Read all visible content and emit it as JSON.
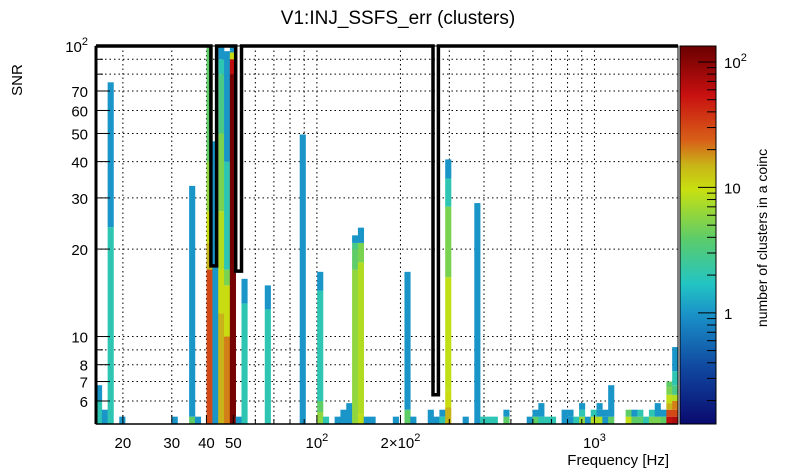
{
  "chart_data": {
    "type": "heatmap",
    "title": "V1:INJ_SSFS_err (clusters)",
    "xlabel": "Frequency [Hz]",
    "ylabel": "SNR",
    "zlabel": "number of clusters in a coinc",
    "xscale": "log",
    "yscale": "log",
    "zscale": "log",
    "xlim": [
      16,
      2000
    ],
    "ylim": [
      5,
      100
    ],
    "zlim": [
      0.13,
      134
    ],
    "nbins_x": 100,
    "grid": true,
    "x_ticks": [
      {
        "v": 20,
        "label": "20"
      },
      {
        "v": 30,
        "label": "30"
      },
      {
        "v": 40,
        "label": "40"
      },
      {
        "v": 50,
        "label": "50"
      },
      {
        "v": 100,
        "label": "10",
        "sup": "2"
      },
      {
        "v": 200,
        "label": "2×10",
        "sup": "2"
      },
      {
        "v": 1000,
        "label": "10",
        "sup": "3"
      }
    ],
    "x_grid": [
      20,
      30,
      40,
      50,
      60,
      70,
      80,
      90,
      100,
      200,
      300,
      400,
      500,
      600,
      700,
      800,
      900,
      1000
    ],
    "y_ticks": [
      {
        "v": 100,
        "label": "10",
        "sup": "2"
      },
      {
        "v": 70,
        "label": "70"
      },
      {
        "v": 60,
        "label": "60"
      },
      {
        "v": 50,
        "label": "50"
      },
      {
        "v": 40,
        "label": "40"
      },
      {
        "v": 30,
        "label": "30"
      },
      {
        "v": 20,
        "label": "20"
      },
      {
        "v": 10,
        "label": "10"
      },
      {
        "v": 8,
        "label": "8"
      },
      {
        "v": 7,
        "label": "7"
      },
      {
        "v": 6,
        "label": "6"
      }
    ],
    "y_grid": [
      90,
      80,
      70,
      60,
      50,
      40,
      30,
      20,
      10,
      9,
      8,
      7,
      6
    ],
    "z_ticks": [
      {
        "v": 100,
        "label": "10",
        "sup": "2"
      },
      {
        "v": 10,
        "label": "10"
      },
      {
        "v": 1,
        "label": "1"
      }
    ],
    "palette": [
      [
        0.0,
        "#0a0a6e"
      ],
      [
        0.15,
        "#1048a0"
      ],
      [
        0.29,
        "#1a92c8"
      ],
      [
        0.37,
        "#22c4c4"
      ],
      [
        0.49,
        "#5ccc6a"
      ],
      [
        0.62,
        "#c8e010"
      ],
      [
        0.685,
        "#c8b418"
      ],
      [
        0.75,
        "#d86018"
      ],
      [
        0.87,
        "#c81010"
      ],
      [
        1.0,
        "#6a0000"
      ]
    ],
    "bins": [
      {
        "i": 0,
        "segs": [
          [
            6.0,
            2
          ],
          [
            6.8,
            1
          ]
        ]
      },
      {
        "i": 1,
        "segs": [
          [
            5.6,
            1
          ]
        ]
      },
      {
        "i": 2,
        "segs": [
          [
            23.8,
            2
          ],
          [
            75,
            1
          ]
        ]
      },
      {
        "i": 4,
        "segs": [
          [
            5.3,
            1
          ]
        ]
      },
      {
        "i": 13,
        "segs": [
          [
            5.3,
            1
          ]
        ]
      },
      {
        "i": 16,
        "segs": [
          [
            5.3,
            4
          ],
          [
            33,
            1
          ]
        ]
      },
      {
        "i": 17,
        "segs": [
          [
            5.3,
            1
          ]
        ]
      },
      {
        "i": 19,
        "segs": [
          [
            17,
            30
          ],
          [
            21,
            15
          ],
          [
            27,
            10
          ],
          [
            40,
            6
          ],
          [
            100,
            4
          ]
        ]
      },
      {
        "i": 20,
        "segs": [
          [
            47,
            1
          ]
        ]
      },
      {
        "i": 21,
        "segs": [
          [
            12,
            15
          ],
          [
            17,
            10
          ],
          [
            27,
            8
          ],
          [
            50,
            5
          ],
          [
            80,
            3
          ],
          [
            90,
            2
          ],
          [
            100,
            1
          ]
        ]
      },
      {
        "i": 22,
        "segs": [
          [
            10,
            20
          ],
          [
            15,
            10
          ],
          [
            17,
            5
          ],
          [
            40,
            2
          ],
          [
            96,
            1
          ]
        ]
      },
      {
        "i": 23,
        "segs": [
          [
            80,
            120
          ],
          [
            90,
            60
          ],
          [
            95,
            10
          ],
          [
            100,
            1
          ]
        ]
      },
      {
        "i": 24,
        "segs": [
          [
            5.3,
            1
          ]
        ]
      },
      {
        "i": 25,
        "segs": [
          [
            13,
            2
          ],
          [
            15.8,
            1
          ]
        ]
      },
      {
        "i": 29,
        "segs": [
          [
            12.4,
            2
          ],
          [
            15,
            1
          ]
        ]
      },
      {
        "i": 35,
        "segs": [
          [
            49.6,
            1
          ]
        ]
      },
      {
        "i": 38,
        "segs": [
          [
            5.5,
            6
          ],
          [
            6,
            4
          ],
          [
            14.4,
            2
          ],
          [
            16.7,
            1
          ]
        ]
      },
      {
        "i": 39,
        "segs": [
          [
            5.3,
            2
          ]
        ]
      },
      {
        "i": 41,
        "segs": [
          [
            5.3,
            1
          ]
        ]
      },
      {
        "i": 42,
        "segs": [
          [
            5.6,
            1
          ]
        ]
      },
      {
        "i": 43,
        "segs": [
          [
            5.9,
            1
          ]
        ]
      },
      {
        "i": 44,
        "segs": [
          [
            17,
            6
          ],
          [
            20,
            4
          ],
          [
            21,
            3
          ],
          [
            22.3,
            1
          ]
        ]
      },
      {
        "i": 45,
        "segs": [
          [
            5.4,
            9
          ],
          [
            18,
            8
          ],
          [
            21,
            5
          ],
          [
            23.7,
            1
          ]
        ]
      },
      {
        "i": 46,
        "segs": [
          [
            5.3,
            1
          ]
        ]
      },
      {
        "i": 47,
        "segs": [
          [
            5.3,
            1
          ]
        ]
      },
      {
        "i": 51,
        "segs": [
          [
            5.3,
            1
          ]
        ]
      },
      {
        "i": 53,
        "segs": [
          [
            5.6,
            4
          ],
          [
            16.7,
            1
          ]
        ]
      },
      {
        "i": 54,
        "segs": [
          [
            5.3,
            1
          ]
        ]
      },
      {
        "i": 57,
        "segs": [
          [
            5.6,
            1
          ]
        ]
      },
      {
        "i": 58,
        "segs": [
          [
            5.3,
            1
          ]
        ]
      },
      {
        "i": 59,
        "segs": [
          [
            5.3,
            2
          ],
          [
            5.6,
            1
          ]
        ]
      },
      {
        "i": 60,
        "segs": [
          [
            5.7,
            15
          ],
          [
            6.5,
            10
          ],
          [
            16,
            9
          ],
          [
            28,
            5
          ],
          [
            35,
            2
          ],
          [
            40.7,
            1
          ]
        ]
      },
      {
        "i": 63,
        "segs": [
          [
            5.3,
            1
          ]
        ]
      },
      {
        "i": 65,
        "segs": [
          [
            28.8,
            1
          ]
        ]
      },
      {
        "i": 66,
        "segs": [
          [
            5.3,
            2
          ]
        ]
      },
      {
        "i": 67,
        "segs": [
          [
            5.3,
            2
          ]
        ]
      },
      {
        "i": 68,
        "segs": [
          [
            5.3,
            2
          ]
        ]
      },
      {
        "i": 70,
        "segs": [
          [
            5.3,
            4
          ],
          [
            5.6,
            1
          ]
        ]
      },
      {
        "i": 74,
        "segs": [
          [
            5.3,
            1
          ]
        ]
      },
      {
        "i": 75,
        "segs": [
          [
            5.3,
            4
          ],
          [
            5.6,
            1
          ]
        ]
      },
      {
        "i": 76,
        "segs": [
          [
            5.3,
            2
          ],
          [
            5.9,
            1
          ]
        ]
      },
      {
        "i": 77,
        "segs": [
          [
            5.3,
            2
          ]
        ]
      },
      {
        "i": 78,
        "segs": [
          [
            5.3,
            2
          ]
        ]
      },
      {
        "i": 80,
        "segs": [
          [
            5.6,
            1
          ]
        ]
      },
      {
        "i": 81,
        "segs": [
          [
            5.3,
            1
          ],
          [
            5.6,
            1
          ]
        ]
      },
      {
        "i": 82,
        "segs": [
          [
            5.3,
            2
          ]
        ]
      },
      {
        "i": 83,
        "segs": [
          [
            5.3,
            6
          ],
          [
            5.6,
            2
          ],
          [
            5.9,
            1
          ]
        ]
      },
      {
        "i": 84,
        "segs": [
          [
            5.3,
            1
          ]
        ]
      },
      {
        "i": 85,
        "segs": [
          [
            5.3,
            8
          ],
          [
            5.6,
            2
          ]
        ]
      },
      {
        "i": 86,
        "segs": [
          [
            5.3,
            8
          ],
          [
            5.6,
            1
          ],
          [
            5.9,
            1
          ]
        ]
      },
      {
        "i": 87,
        "segs": [
          [
            5.3,
            1
          ],
          [
            5.6,
            1
          ]
        ]
      },
      {
        "i": 88,
        "segs": [
          [
            5.3,
            4
          ],
          [
            6.8,
            1
          ]
        ]
      },
      {
        "i": 91,
        "segs": [
          [
            5.3,
            9
          ],
          [
            5.6,
            4
          ]
        ]
      },
      {
        "i": 92,
        "segs": [
          [
            5.3,
            4
          ],
          [
            5.6,
            1
          ]
        ]
      },
      {
        "i": 93,
        "segs": [
          [
            5.3,
            4
          ],
          [
            5.6,
            2
          ]
        ]
      },
      {
        "i": 94,
        "segs": [
          [
            5.3,
            2
          ]
        ]
      },
      {
        "i": 95,
        "segs": [
          [
            5.3,
            5
          ],
          [
            5.6,
            2
          ]
        ]
      },
      {
        "i": 96,
        "segs": [
          [
            5.3,
            5
          ],
          [
            5.9,
            1
          ]
        ]
      },
      {
        "i": 97,
        "segs": [
          [
            5.3,
            4
          ],
          [
            5.6,
            1
          ]
        ]
      },
      {
        "i": 98,
        "segs": [
          [
            5.3,
            60
          ],
          [
            5.6,
            30
          ],
          [
            5.9,
            15
          ],
          [
            6.3,
            9
          ],
          [
            6.7,
            5
          ],
          [
            7.0,
            4
          ]
        ]
      },
      {
        "i": 99,
        "segs": [
          [
            5.3,
            70
          ],
          [
            5.6,
            30
          ],
          [
            6.0,
            20
          ],
          [
            6.3,
            8
          ],
          [
            6.8,
            3
          ],
          [
            7.6,
            2
          ],
          [
            9.2,
            1
          ]
        ]
      }
    ],
    "contour": [
      [
        16,
        100
      ],
      [
        41.5,
        100
      ],
      [
        41.5,
        17.5
      ],
      [
        43.5,
        17.5
      ],
      [
        43.5,
        100
      ],
      [
        51,
        100
      ],
      [
        51,
        16.8
      ],
      [
        53.5,
        16.8
      ],
      [
        53.5,
        100
      ],
      [
        262,
        100
      ],
      [
        262,
        6.3
      ],
      [
        274,
        6.3
      ],
      [
        274,
        100
      ],
      [
        2000,
        100
      ]
    ]
  }
}
